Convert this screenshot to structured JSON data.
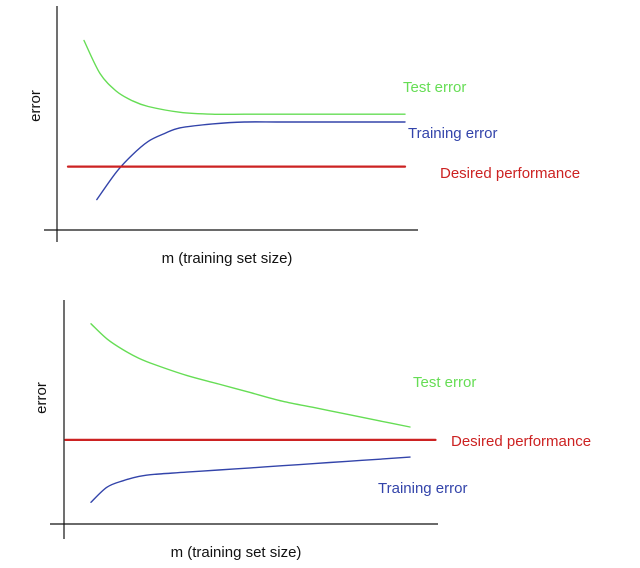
{
  "chart_data": [
    {
      "type": "line",
      "title": "",
      "xlabel": "m (training set size)",
      "ylabel": "error",
      "xlim": [
        0,
        100
      ],
      "ylim": [
        0,
        100
      ],
      "grid": false,
      "legend": "inline-right",
      "series": [
        {
          "name": "Test error",
          "color": "#66dd55",
          "x": [
            0,
            5,
            10,
            15,
            20,
            30,
            40,
            50,
            60,
            70,
            80,
            90,
            100
          ],
          "y": [
            92,
            75,
            66,
            61,
            58,
            55,
            54,
            54,
            54,
            54,
            54,
            54,
            54
          ]
        },
        {
          "name": "Training error",
          "color": "#3344aa",
          "x": [
            4,
            10,
            15,
            20,
            25,
            30,
            40,
            50,
            60,
            70,
            80,
            90,
            100
          ],
          "y": [
            10,
            24,
            33,
            40,
            44,
            47,
            49,
            50,
            50,
            50,
            50,
            50,
            50
          ]
        },
        {
          "name": "Desired performance",
          "color": "#cc2222",
          "x": [
            -5,
            100
          ],
          "y": [
            27,
            27
          ]
        }
      ]
    },
    {
      "type": "line",
      "title": "",
      "xlabel": "m (training set size)",
      "ylabel": "error",
      "xlim": [
        0,
        100
      ],
      "ylim": [
        0,
        100
      ],
      "grid": false,
      "legend": "inline-right",
      "series": [
        {
          "name": "Test error",
          "color": "#66dd55",
          "x": [
            0,
            5,
            10,
            15,
            20,
            30,
            40,
            50,
            60,
            70,
            80,
            90,
            100
          ],
          "y": [
            88,
            81,
            76,
            72,
            69,
            64,
            60,
            56,
            52,
            49,
            46,
            43,
            40
          ]
        },
        {
          "name": "Training error",
          "color": "#3344aa",
          "x": [
            0,
            5,
            10,
            15,
            20,
            30,
            40,
            50,
            60,
            70,
            80,
            90,
            100
          ],
          "y": [
            5,
            12,
            15,
            17,
            18,
            19,
            20,
            21,
            22,
            23,
            24,
            25,
            26
          ]
        },
        {
          "name": "Desired performance",
          "color": "#cc2222",
          "x": [
            -8,
            108
          ],
          "y": [
            34,
            34
          ]
        }
      ]
    }
  ]
}
